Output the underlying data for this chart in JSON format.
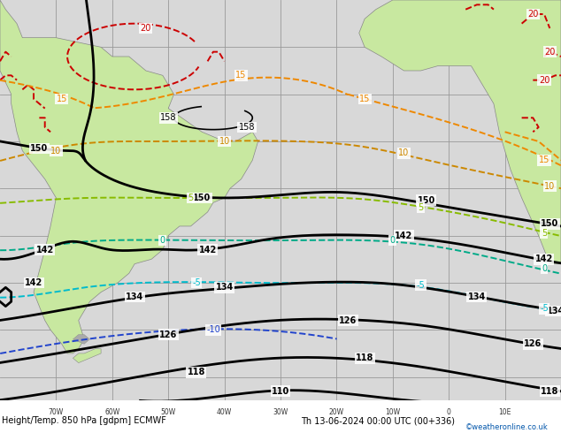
{
  "title": "Height/Temp. 850 hPa [gdpm] ECMWF",
  "subtitle": "Th 13-06-2024 00:00 UTC (00+336)",
  "credit": "©weatheronline.co.uk",
  "bg_land_color": "#c8e8a0",
  "bg_sea_color": "#d8d8d8",
  "grid_color": "#999999",
  "land_border_color": "#888888",
  "fig_width": 6.34,
  "fig_height": 4.9,
  "dpi": 100,
  "xlim": [
    -80,
    20
  ],
  "ylim": [
    -65,
    20
  ],
  "xtick_pos": [
    -70,
    -60,
    -50,
    -40,
    -30,
    -20,
    -10,
    0,
    10
  ],
  "ytick_pos": [
    -60,
    -50,
    -40,
    -30,
    -20,
    -10,
    0,
    10
  ],
  "xlabels": [
    "70W",
    "60W",
    "50W",
    "40W",
    "30W",
    "20W",
    "10W",
    "0",
    "10E"
  ],
  "height_lw": 2.0,
  "height_lw_thin": 1.2,
  "temp_lw": 1.4,
  "temp_ls": "--",
  "colors": {
    "black": "#000000",
    "red": "#cc0000",
    "orange": "#ee8800",
    "darkorange": "#cc8800",
    "yellow_green": "#88bb00",
    "teal": "#00aa88",
    "cyan": "#00bbcc",
    "blue": "#2244cc",
    "land": "#c8e8a0",
    "sea": "#d8d8d8",
    "border": "#888888"
  }
}
